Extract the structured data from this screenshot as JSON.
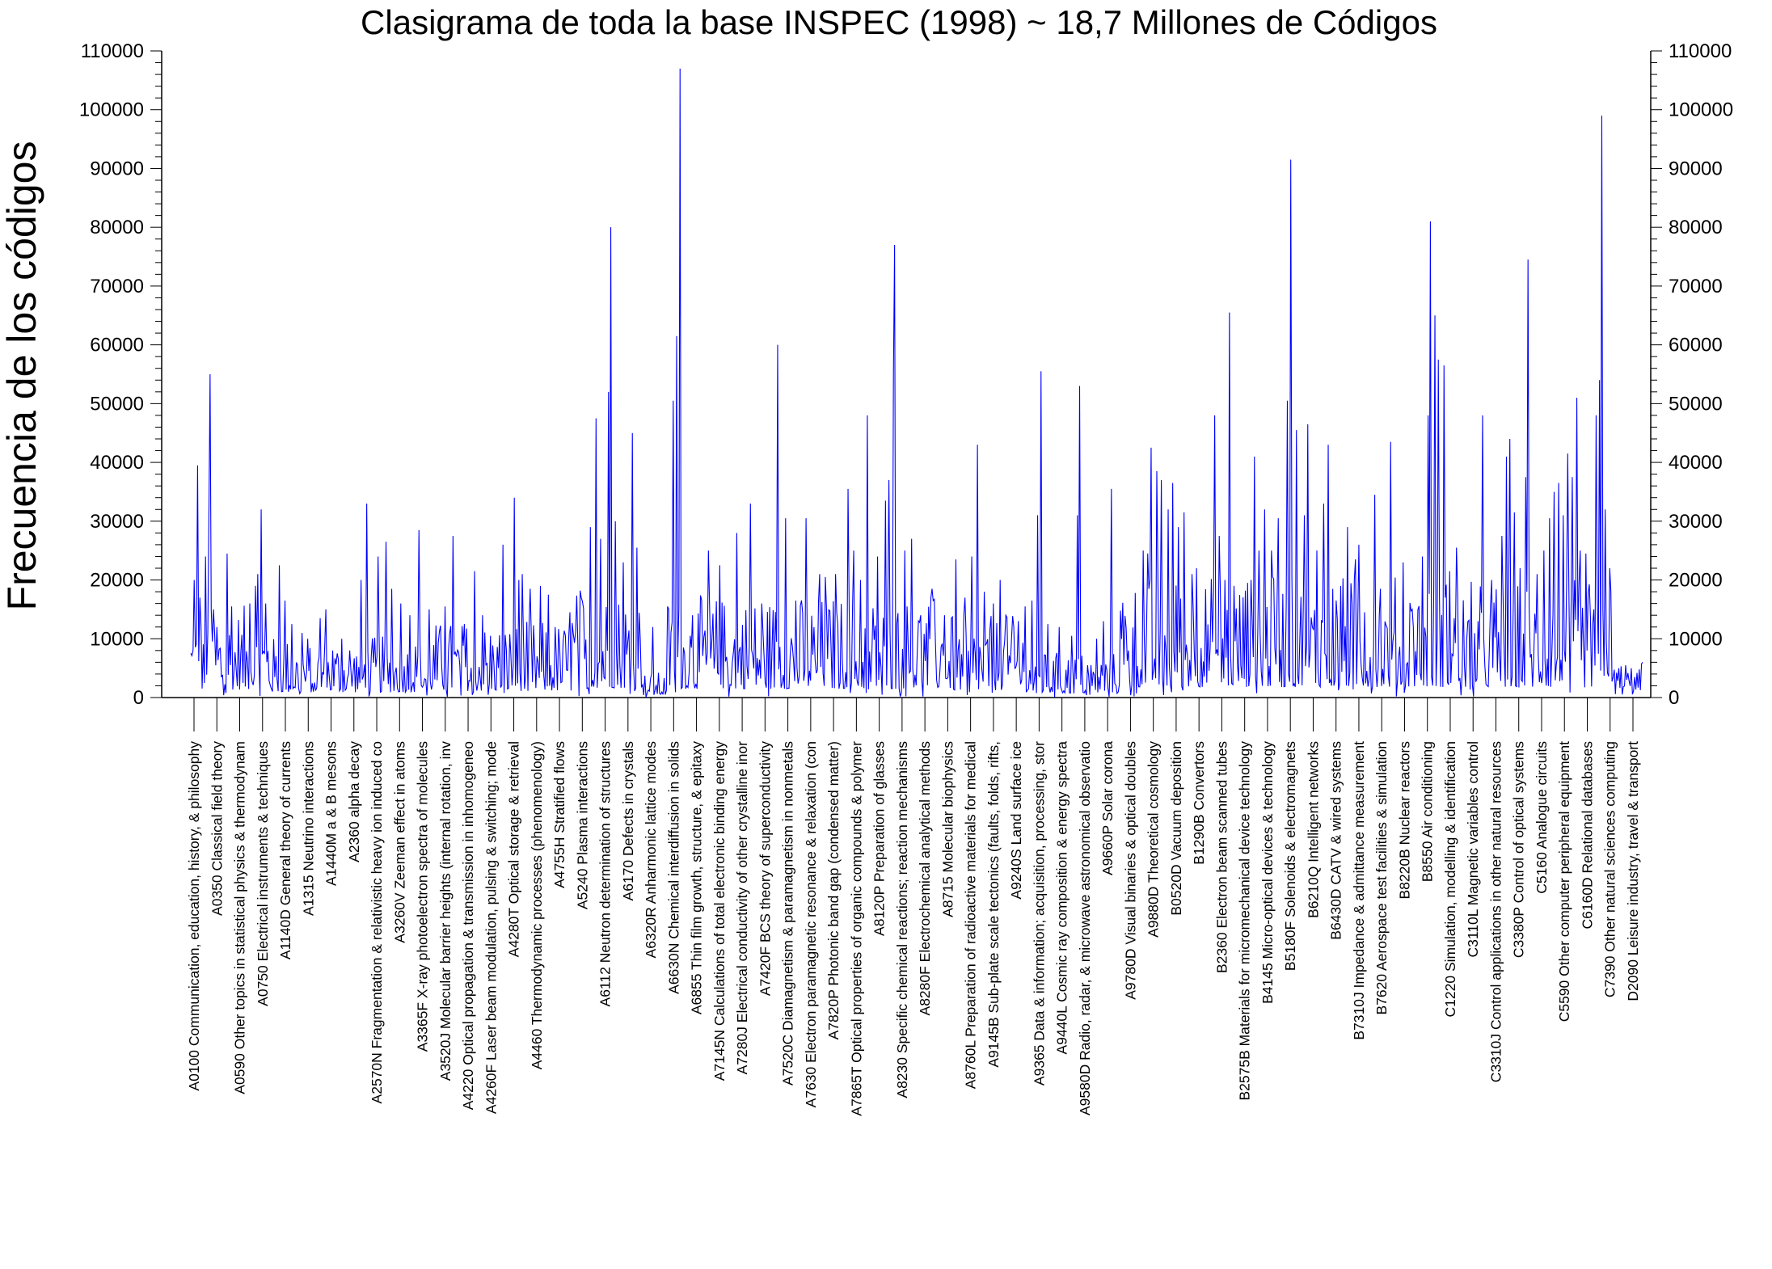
{
  "chart_data": {
    "type": "line",
    "title": "Clasigrama de toda la base INSPEC (1998)  ~ 18,7 Millones de Códigos",
    "ylabel": "Frecuencia de los códigos",
    "xlabel": "",
    "ylim": [
      0,
      110000
    ],
    "yticks": [
      0,
      10000,
      20000,
      30000,
      40000,
      50000,
      60000,
      70000,
      80000,
      90000,
      100000,
      110000
    ],
    "y_minor_step": 2000,
    "grid": false,
    "legend": "none",
    "line_color": "#0000ff",
    "n_points": 1280,
    "categories": [
      "A0100 Communication, education, history, & philosophy",
      "A0350 Classical field theory",
      "A0590   Other   topics   in   statistical   physics  & thermodynam",
      "A0750 Electrical instruments & techniques",
      "A1140D General theory of currents",
      "A1315 Neutrino interactions",
      "A1440M a & B mesons",
      "A2360 alpha decay",
      "A2570N  Fragmentation & relativistic heavy ion induced co",
      "A3260V Zeeman effect in atoms",
      "A3365F X-ray photoelectron spectra of molecules",
      "A3520J  Molecular  barrier heights (internal rotation, inv",
      "A4220   Optical   propagation   &   transmission   in inhomogeneo",
      "A4260F  Laser  beam  modulation,  pulsing & switching; mode",
      "A4280T Optical storage & retrieval",
      "A4460 Thermodynamic processes (phenomenology)",
      "A4755H Stratified flows",
      "A5240 Plasma interactions",
      "A6112 Neutron determination of structures",
      "A6170 Defects in crystals",
      "A6320R Anharmonic lattice modes",
      "A6630N Chemical interdiffusion in solids",
      "A6855 Thin film growth, structure, & epitaxy",
      "A7145N Calculations of total electronic binding energy",
      "A7280J   Electrical  conductivity  of  other crystalline inor",
      "A7420F BCS theory of superconductivity",
      "A7520C Diamagnetism & paramagnetism in nonmetals",
      "A7630   Electron  paramagnetic  resonance  & relaxation (con",
      "A7820P Photonic band gap (condensed matter)",
      "A7865T   Optical  properties  of  organic  compounds  &  polymer",
      "A8120P Preparation of glasses",
      "A8230 Specific chemical reactions; reaction mechanisms",
      "A8280F Electrochemical analytical methods",
      "A8715 Molecular biophysics",
      "A8760L   Preparation   of  radioactive  materials  for medical",
      "A9145B   Sub-plate  scale  tectonics  (faults,  folds, rifts,",
      "A9240S Land surface ice",
      "A9365   Data  &  information;  acquisition,  processing, stor",
      "A9440L Cosmic ray composition & energy spectra",
      "A9580D   Radio,  radar,  &   microwave  astronomical observatio",
      "A9660P Solar corona",
      "A9780D Visual binaries & optical doubles",
      "A9880D Theoretical cosmology",
      "B0520D Vacuum deposition",
      "B1290B Convertors",
      "B2360 Electron beam scanned tubes",
      "B2575B Materials for micromechanical device technology",
      "B4145 Micro-optical devices & technology",
      "B5180F Solenoids & electromagnets",
      "B6210Q Intelligent networks",
      "B6430D CATV & wired systems",
      "B7310J Impedance & admittance measurement",
      "B7620 Aerospace test facilities & simulation",
      "B8220B Nuclear reactors",
      "B8550 Air conditioning",
      "C1220 Simulation,  modelling & identification",
      "C3110L Magnetic variables control",
      "C3310J Control applications in other natural resources",
      "C3380P Control of optical systems",
      "C5160 Analogue circuits",
      "C5590 Other computer peripheral equipment",
      "C6160D Relational databases",
      "C7390 Other natural sciences computing",
      "D2090 Leisure industry, travel & transport"
    ],
    "peaks": [
      [
        0.004,
        20000
      ],
      [
        0.009,
        39500
      ],
      [
        0.012,
        17000
      ],
      [
        0.018,
        24000
      ],
      [
        0.023,
        31500
      ],
      [
        0.025,
        55000
      ],
      [
        0.028,
        15000
      ],
      [
        0.033,
        12000
      ],
      [
        0.046,
        24500
      ],
      [
        0.052,
        15500
      ],
      [
        0.063,
        7000
      ],
      [
        0.075,
        16000
      ],
      [
        0.081,
        19000
      ],
      [
        0.084,
        21000
      ],
      [
        0.089,
        32000
      ],
      [
        0.095,
        16000
      ],
      [
        0.112,
        22500
      ],
      [
        0.119,
        16500
      ],
      [
        0.128,
        12500
      ],
      [
        0.14,
        11000
      ],
      [
        0.148,
        10000
      ],
      [
        0.163,
        13500
      ],
      [
        0.17,
        15000
      ],
      [
        0.179,
        8000
      ],
      [
        0.191,
        10000
      ],
      [
        0.2,
        8000
      ],
      [
        0.215,
        20000
      ],
      [
        0.222,
        33000
      ],
      [
        0.236,
        24000
      ],
      [
        0.246,
        26500
      ],
      [
        0.253,
        18500
      ],
      [
        0.265,
        16000
      ],
      [
        0.276,
        14000
      ],
      [
        0.288,
        28500
      ],
      [
        0.3,
        15000
      ],
      [
        0.32,
        15500
      ],
      [
        0.33,
        27500
      ],
      [
        0.345,
        12500
      ],
      [
        0.358,
        21500
      ],
      [
        0.368,
        14000
      ],
      [
        0.378,
        10500
      ],
      [
        0.393,
        26000
      ],
      [
        0.408,
        34000
      ],
      [
        0.414,
        20000
      ],
      [
        0.418,
        21000
      ],
      [
        0.428,
        18500
      ],
      [
        0.44,
        19000
      ],
      [
        0.45,
        17500
      ],
      [
        0.46,
        12000
      ],
      [
        0.478,
        14500
      ],
      [
        0.492,
        17000
      ],
      [
        0.503,
        29000
      ],
      [
        0.511,
        47500
      ],
      [
        0.517,
        27000
      ],
      [
        0.526,
        52000
      ],
      [
        0.53,
        80000
      ],
      [
        0.535,
        30000
      ],
      [
        0.545,
        23000
      ],
      [
        0.556,
        45000
      ],
      [
        0.562,
        25500
      ],
      [
        0.582,
        12000
      ],
      [
        0.608,
        50500
      ],
      [
        0.613,
        61500
      ],
      [
        0.617,
        107000
      ],
      [
        0.633,
        14000
      ],
      [
        0.652,
        25000
      ],
      [
        0.667,
        22500
      ],
      [
        0.688,
        28000
      ],
      [
        0.705,
        33000
      ],
      [
        0.72,
        16000
      ],
      [
        0.74,
        60000
      ],
      [
        0.75,
        30500
      ],
      [
        0.762,
        16500
      ],
      [
        0.775,
        30500
      ],
      [
        0.792,
        21000
      ],
      [
        0.8,
        20500
      ],
      [
        0.813,
        21000
      ],
      [
        0.828,
        35500
      ],
      [
        0.835,
        25000
      ],
      [
        0.844,
        20000
      ],
      [
        0.853,
        48000
      ],
      [
        0.865,
        24000
      ],
      [
        0.875,
        33500
      ],
      [
        0.88,
        37000
      ],
      [
        0.885,
        55000
      ],
      [
        0.887,
        77000
      ],
      [
        0.9,
        25000
      ],
      [
        0.908,
        27000
      ],
      [
        0.92,
        14000
      ],
      [
        0.934,
        18500
      ],
      [
        0.95,
        14000
      ],
      [
        0.958,
        13500
      ],
      [
        0.965,
        23500
      ],
      [
        0.976,
        17000
      ],
      [
        0.985,
        24000
      ],
      [
        0.992,
        43000
      ],
      [
        1.0,
        18000
      ],
      [
        1.012,
        16000
      ],
      [
        1.02,
        20000
      ],
      [
        1.028,
        14000
      ],
      [
        1.038,
        12000
      ],
      [
        1.043,
        13000
      ],
      [
        1.052,
        15500
      ],
      [
        1.06,
        16500
      ],
      [
        1.068,
        31000
      ],
      [
        1.071,
        55500
      ],
      [
        1.08,
        12500
      ],
      [
        1.095,
        12000
      ],
      [
        1.11,
        10500
      ],
      [
        1.117,
        31000
      ],
      [
        1.121,
        53000
      ],
      [
        1.13,
        5500
      ],
      [
        1.142,
        10000
      ],
      [
        1.15,
        13000
      ],
      [
        1.16,
        35500
      ],
      [
        1.175,
        10000
      ],
      [
        1.182,
        8000
      ],
      [
        1.2,
        25000
      ],
      [
        1.206,
        24500
      ],
      [
        1.21,
        42500
      ],
      [
        1.218,
        38500
      ],
      [
        1.224,
        37000
      ],
      [
        1.232,
        32000
      ],
      [
        1.238,
        36500
      ],
      [
        1.245,
        29000
      ],
      [
        1.252,
        31500
      ],
      [
        1.262,
        21000
      ],
      [
        1.267,
        22000
      ],
      [
        1.29,
        48000
      ],
      [
        1.296,
        27500
      ],
      [
        1.303,
        20000
      ],
      [
        1.309,
        65500
      ],
      [
        1.315,
        19000
      ],
      [
        1.322,
        13000
      ],
      [
        1.332,
        19500
      ],
      [
        1.34,
        41000
      ],
      [
        1.347,
        25000
      ],
      [
        1.354,
        32000
      ],
      [
        1.362,
        25000
      ],
      [
        1.37,
        30500
      ],
      [
        1.382,
        50500
      ],
      [
        1.386,
        78000
      ],
      [
        1.387,
        91500
      ],
      [
        1.393,
        45500
      ],
      [
        1.403,
        31000
      ],
      [
        1.408,
        46500
      ],
      [
        1.42,
        25000
      ],
      [
        1.428,
        33000
      ],
      [
        1.434,
        43000
      ],
      [
        1.44,
        18500
      ],
      [
        1.45,
        19000
      ],
      [
        1.458,
        29000
      ],
      [
        1.468,
        23500
      ],
      [
        1.472,
        26000
      ],
      [
        1.48,
        14500
      ],
      [
        1.492,
        34500
      ],
      [
        1.5,
        18500
      ],
      [
        1.512,
        43500
      ],
      [
        1.518,
        19000
      ],
      [
        1.528,
        23000
      ],
      [
        1.54,
        15000
      ],
      [
        1.552,
        24000
      ],
      [
        1.56,
        48000
      ],
      [
        1.562,
        74000
      ],
      [
        1.563,
        81000
      ],
      [
        1.568,
        65000
      ],
      [
        1.573,
        57500
      ],
      [
        1.58,
        56500
      ],
      [
        1.587,
        21500
      ],
      [
        1.595,
        25500
      ],
      [
        1.61,
        12500
      ],
      [
        1.623,
        13000
      ],
      [
        1.628,
        48000
      ],
      [
        1.64,
        20000
      ],
      [
        1.653,
        27500
      ],
      [
        1.658,
        41000
      ],
      [
        1.663,
        44000
      ],
      [
        1.668,
        31500
      ],
      [
        1.675,
        22000
      ],
      [
        1.683,
        37500
      ],
      [
        1.686,
        74500
      ],
      [
        1.697,
        21000
      ],
      [
        1.705,
        25000
      ],
      [
        1.712,
        30500
      ],
      [
        1.718,
        35000
      ],
      [
        1.724,
        36500
      ],
      [
        1.73,
        31000
      ],
      [
        1.736,
        41500
      ],
      [
        1.742,
        37500
      ],
      [
        1.747,
        51000
      ],
      [
        1.752,
        25000
      ],
      [
        1.758,
        24500
      ],
      [
        1.768,
        15000
      ],
      [
        1.772,
        48000
      ],
      [
        1.776,
        54000
      ],
      [
        1.778,
        99000
      ],
      [
        1.783,
        32000
      ],
      [
        1.788,
        22000
      ],
      [
        1.79,
        6500
      ],
      [
        1.8,
        5000
      ],
      [
        1.808,
        5500
      ],
      [
        1.82,
        3500
      ],
      [
        1.83,
        6000
      ]
    ]
  }
}
